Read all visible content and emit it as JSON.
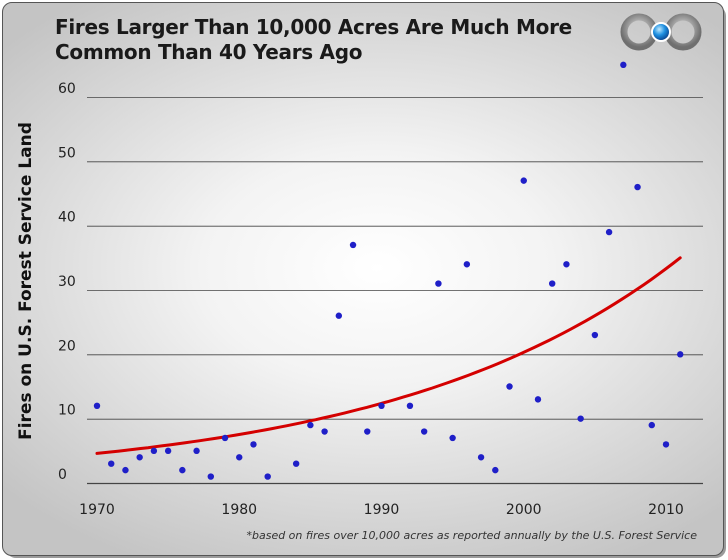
{
  "title": {
    "line1": "Fires Larger Than 10,000 Acres Are Much More",
    "line2": "Common Than 40 Years Ago"
  },
  "footnote": "*based on fires over 10,000 acres as reported annually by the U.S. Forest Service",
  "colors": {
    "points": "#1f1fc8",
    "trend": "#d40000",
    "gridline": "#444444"
  },
  "chart_data": {
    "type": "scatter",
    "title": "Fires Larger Than 10,000 Acres Are Much More Common Than 40 Years Ago",
    "xlabel": "",
    "ylabel": "Fires on U.S. Forest Service Land",
    "xlim": [
      1969,
      2012
    ],
    "ylim": [
      0,
      60
    ],
    "x_ticks": [
      1970,
      1980,
      1990,
      2000,
      2010
    ],
    "y_ticks": [
      0,
      10,
      20,
      30,
      40,
      50,
      60
    ],
    "grid": "horizontal",
    "points": [
      {
        "x": 1970,
        "y": 12
      },
      {
        "x": 1971,
        "y": 3
      },
      {
        "x": 1972,
        "y": 2
      },
      {
        "x": 1973,
        "y": 4
      },
      {
        "x": 1974,
        "y": 5
      },
      {
        "x": 1975,
        "y": 5
      },
      {
        "x": 1976,
        "y": 2
      },
      {
        "x": 1977,
        "y": 5
      },
      {
        "x": 1978,
        "y": 1
      },
      {
        "x": 1979,
        "y": 7
      },
      {
        "x": 1980,
        "y": 4
      },
      {
        "x": 1981,
        "y": 6
      },
      {
        "x": 1982,
        "y": 1
      },
      {
        "x": 1984,
        "y": 3
      },
      {
        "x": 1985,
        "y": 9
      },
      {
        "x": 1986,
        "y": 8
      },
      {
        "x": 1987,
        "y": 26
      },
      {
        "x": 1988,
        "y": 37
      },
      {
        "x": 1989,
        "y": 8
      },
      {
        "x": 1990,
        "y": 12
      },
      {
        "x": 1992,
        "y": 12
      },
      {
        "x": 1993,
        "y": 8
      },
      {
        "x": 1994,
        "y": 31
      },
      {
        "x": 1995,
        "y": 7
      },
      {
        "x": 1996,
        "y": 34
      },
      {
        "x": 1997,
        "y": 4
      },
      {
        "x": 1998,
        "y": 2
      },
      {
        "x": 1999,
        "y": 15
      },
      {
        "x": 2000,
        "y": 47
      },
      {
        "x": 2001,
        "y": 13
      },
      {
        "x": 2002,
        "y": 31
      },
      {
        "x": 2003,
        "y": 34
      },
      {
        "x": 2004,
        "y": 10
      },
      {
        "x": 2005,
        "y": 23
      },
      {
        "x": 2006,
        "y": 39
      },
      {
        "x": 2007,
        "y": 65
      },
      {
        "x": 2008,
        "y": 46
      },
      {
        "x": 2009,
        "y": 9
      },
      {
        "x": 2010,
        "y": 6
      },
      {
        "x": 2011,
        "y": 20
      }
    ],
    "trend": {
      "type": "exponential",
      "x_start": 1970,
      "y_start": 4.6,
      "x_end": 2011,
      "y_end": 35
    }
  }
}
